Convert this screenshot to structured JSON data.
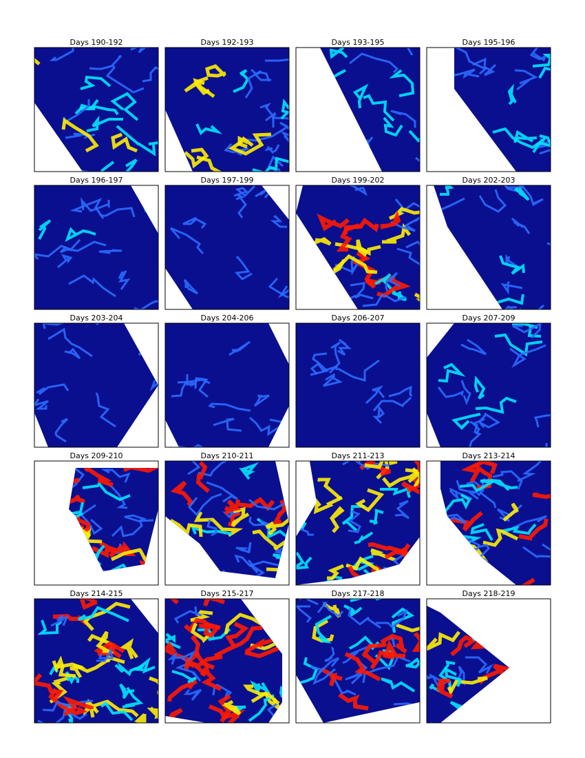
{
  "panels": [
    {
      "title": "Days 190-192"
    },
    {
      "title": "Days 192-193"
    },
    {
      "title": "Days 193-195"
    },
    {
      "title": "Days 195-196"
    },
    {
      "title": "Days 196-197"
    },
    {
      "title": "Days 197-199"
    },
    {
      "title": "Days 199-202"
    },
    {
      "title": "Days 202-203"
    },
    {
      "title": "Days 203-204"
    },
    {
      "title": "Days 204-206"
    },
    {
      "title": "Days 206-207"
    },
    {
      "title": "Days 207-209"
    },
    {
      "title": "Days 209-210"
    },
    {
      "title": "Days 210-211"
    },
    {
      "title": "Days 211-213"
    },
    {
      "title": "Days 213-214"
    },
    {
      "title": "Days 214-215"
    },
    {
      "title": "Days 215-217"
    },
    {
      "title": "Days 217-218"
    },
    {
      "title": "Days 218-219"
    }
  ]
}
